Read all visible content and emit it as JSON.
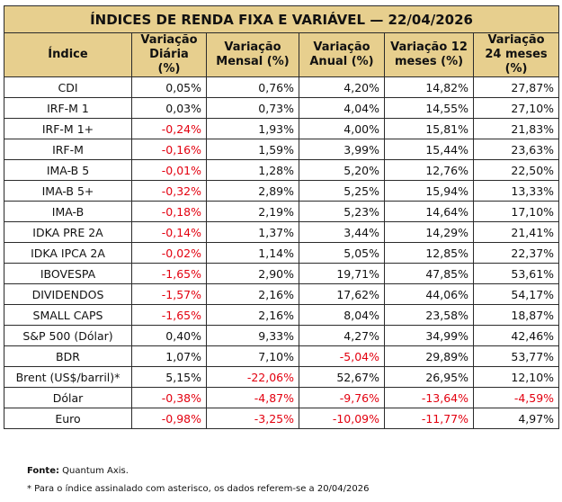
{
  "title": "ÍNDICES DE RENDA FIXA E VARIÁVEL — 22/04/2026",
  "headers": [
    "Índice",
    "Variação Diária (%)",
    "Variação Mensal (%)",
    "Variação Anual (%)",
    "Variação 12 meses (%)",
    "Variação 24 meses (%)"
  ],
  "rows": [
    {
      "name": "CDI",
      "values": [
        "0,05%",
        "0,76%",
        "4,20%",
        "14,82%",
        "27,87%"
      ]
    },
    {
      "name": "IRF-M 1",
      "values": [
        "0,03%",
        "0,73%",
        "4,04%",
        "14,55%",
        "27,10%"
      ]
    },
    {
      "name": "IRF-M 1+",
      "values": [
        "-0,24%",
        "1,93%",
        "4,00%",
        "15,81%",
        "21,83%"
      ]
    },
    {
      "name": "IRF-M",
      "values": [
        "-0,16%",
        "1,59%",
        "3,99%",
        "15,44%",
        "23,63%"
      ]
    },
    {
      "name": "IMA-B 5",
      "values": [
        "-0,01%",
        "1,28%",
        "5,20%",
        "12,76%",
        "22,50%"
      ]
    },
    {
      "name": "IMA-B 5+",
      "values": [
        "-0,32%",
        "2,89%",
        "5,25%",
        "15,94%",
        "13,33%"
      ]
    },
    {
      "name": "IMA-B",
      "values": [
        "-0,18%",
        "2,19%",
        "5,23%",
        "14,64%",
        "17,10%"
      ]
    },
    {
      "name": "IDKA PRE 2A",
      "values": [
        "-0,14%",
        "1,37%",
        "3,44%",
        "14,29%",
        "21,41%"
      ]
    },
    {
      "name": "IDKA IPCA 2A",
      "values": [
        "-0,02%",
        "1,14%",
        "5,05%",
        "12,85%",
        "22,37%"
      ]
    },
    {
      "name": "IBOVESPA",
      "values": [
        "-1,65%",
        "2,90%",
        "19,71%",
        "47,85%",
        "53,61%"
      ]
    },
    {
      "name": "DIVIDENDOS",
      "values": [
        "-1,57%",
        "2,16%",
        "17,62%",
        "44,06%",
        "54,17%"
      ]
    },
    {
      "name": "SMALL CAPS",
      "values": [
        "-1,65%",
        "2,16%",
        "8,04%",
        "23,58%",
        "18,87%"
      ]
    },
    {
      "name": "S&P 500 (Dólar)",
      "values": [
        "0,40%",
        "9,33%",
        "4,27%",
        "34,99%",
        "42,46%"
      ]
    },
    {
      "name": "BDR",
      "values": [
        "1,07%",
        "7,10%",
        "-5,04%",
        "29,89%",
        "53,77%"
      ]
    },
    {
      "name": "Brent (US$/barril)*",
      "values": [
        "5,15%",
        "-22,06%",
        "52,67%",
        "26,95%",
        "12,10%"
      ]
    },
    {
      "name": "Dólar",
      "values": [
        "-0,38%",
        "-4,87%",
        "-9,76%",
        "-13,64%",
        "-4,59%"
      ]
    },
    {
      "name": "Euro",
      "values": [
        "-0,98%",
        "-3,25%",
        "-10,09%",
        "-11,77%",
        "4,97%"
      ]
    }
  ],
  "footer": {
    "source_label": "Fonte:",
    "source_value": " Quantum Axis.",
    "note": "* Para o índice assinalado com asterisco, os dados referem-se a 20/04/2026"
  },
  "colors": {
    "header_bg": "#e7cf8e",
    "negative": "#e3000f",
    "border": "#2b2b2b"
  }
}
